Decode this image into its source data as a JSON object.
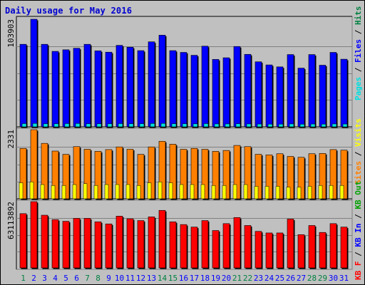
{
  "title": "Daily usage for May 2016",
  "colors": {
    "background": "#c0c0c0",
    "pages": "#00e0e0",
    "files": "#0000ff",
    "hits": "#008040",
    "sites": "#ff8000",
    "visits": "#ffff00",
    "kb_out": "#00a000",
    "kb_in": "#0000ff",
    "kb_f": "#ff0000",
    "title": "#0000d0",
    "weekend_day": "#008040",
    "weekday": "#0000ff"
  },
  "chart_data": [
    {
      "type": "bar",
      "name": "hits-files-pages",
      "ymax_label": "103903",
      "ymax": 103903,
      "legend": [
        "Pages",
        "Files",
        "Hits"
      ],
      "legend_separator": " / ",
      "categories": [
        "1",
        "2",
        "3",
        "4",
        "5",
        "6",
        "7",
        "8",
        "9",
        "10",
        "11",
        "12",
        "13",
        "14",
        "15",
        "16",
        "17",
        "18",
        "19",
        "20",
        "21",
        "22",
        "23",
        "24",
        "25",
        "26",
        "27",
        "28",
        "29",
        "30",
        "31"
      ],
      "series": [
        {
          "name": "Hits",
          "values": [
            79700,
            103900,
            79700,
            72900,
            74400,
            75900,
            79700,
            73400,
            72100,
            78700,
            76900,
            73600,
            82100,
            88500,
            73600,
            71900,
            69100,
            77900,
            65100,
            66700,
            77600,
            70000,
            62800,
            59800,
            57900,
            69800,
            56700,
            69800,
            59500,
            71900,
            65300
          ]
        },
        {
          "name": "Files",
          "values": [
            79700,
            103900,
            79700,
            72900,
            74400,
            75900,
            79700,
            73400,
            72100,
            78700,
            76900,
            73600,
            82100,
            88500,
            73600,
            71900,
            69100,
            77900,
            65100,
            66700,
            77600,
            70000,
            62800,
            59800,
            57900,
            69800,
            56700,
            69800,
            59500,
            71900,
            65300
          ]
        },
        {
          "name": "Pages",
          "values": [
            3100,
            3300,
            3000,
            3000,
            3100,
            3200,
            3000,
            3000,
            3000,
            3100,
            3000,
            3000,
            3200,
            3300,
            3000,
            3000,
            2900,
            3100,
            2800,
            2800,
            3000,
            2800,
            2700,
            2600,
            2600,
            2800,
            2500,
            2700,
            2600,
            2800,
            2700
          ]
        }
      ]
    },
    {
      "type": "bar",
      "name": "visits-sites",
      "ymax_label": "2331",
      "ymax": 2331,
      "legend": [
        "Visits",
        "Sites"
      ],
      "legend_separator": " / ",
      "categories": [
        "1",
        "2",
        "3",
        "4",
        "5",
        "6",
        "7",
        "8",
        "9",
        "10",
        "11",
        "12",
        "13",
        "14",
        "15",
        "16",
        "17",
        "18",
        "19",
        "20",
        "21",
        "22",
        "23",
        "24",
        "25",
        "26",
        "27",
        "28",
        "29",
        "30",
        "31"
      ],
      "series": [
        {
          "name": "Sites",
          "values": [
            1700,
            2331,
            1870,
            1610,
            1500,
            1760,
            1670,
            1600,
            1660,
            1750,
            1670,
            1500,
            1750,
            1940,
            1840,
            1670,
            1700,
            1670,
            1600,
            1630,
            1800,
            1760,
            1500,
            1480,
            1520,
            1430,
            1400,
            1520,
            1530,
            1660,
            1640
          ]
        },
        {
          "name": "Visits",
          "values": [
            180,
            190,
            160,
            150,
            150,
            160,
            170,
            150,
            160,
            160,
            160,
            150,
            180,
            190,
            180,
            160,
            160,
            160,
            150,
            150,
            160,
            160,
            140,
            140,
            140,
            130,
            130,
            140,
            150,
            150,
            150
          ]
        }
      ]
    },
    {
      "type": "bar",
      "name": "kbf-kbin-kbout",
      "ymax_label": "63113892",
      "ymax": 63113892,
      "legend": [
        "KB F",
        "KB In",
        "KB Out"
      ],
      "legend_separator": " / ",
      "categories": [
        "1",
        "2",
        "3",
        "4",
        "5",
        "6",
        "7",
        "8",
        "9",
        "10",
        "11",
        "12",
        "13",
        "14",
        "15",
        "16",
        "17",
        "18",
        "19",
        "20",
        "21",
        "22",
        "23",
        "24",
        "25",
        "26",
        "27",
        "28",
        "29",
        "30",
        "31"
      ],
      "series": [
        {
          "name": "KB F",
          "values": [
            51700000,
            63113892,
            50200000,
            46000000,
            44400000,
            47200000,
            47200000,
            43900000,
            41900000,
            49300000,
            46800000,
            45100000,
            48600000,
            54800000,
            43900000,
            41300000,
            38900000,
            45100000,
            35600000,
            42200000,
            48000000,
            40400000,
            34800000,
            33300000,
            33300000,
            46500000,
            31700000,
            40400000,
            33800000,
            42200000,
            38900000
          ]
        }
      ]
    }
  ],
  "day_labels": [
    {
      "d": "1",
      "weekend": true
    },
    {
      "d": "2",
      "weekend": false
    },
    {
      "d": "3",
      "weekend": false
    },
    {
      "d": "4",
      "weekend": false
    },
    {
      "d": "5",
      "weekend": false
    },
    {
      "d": "6",
      "weekend": false
    },
    {
      "d": "7",
      "weekend": true
    },
    {
      "d": "8",
      "weekend": true
    },
    {
      "d": "9",
      "weekend": false
    },
    {
      "d": "10",
      "weekend": false
    },
    {
      "d": "11",
      "weekend": false
    },
    {
      "d": "12",
      "weekend": false
    },
    {
      "d": "13",
      "weekend": false
    },
    {
      "d": "14",
      "weekend": true
    },
    {
      "d": "15",
      "weekend": true
    },
    {
      "d": "16",
      "weekend": false
    },
    {
      "d": "17",
      "weekend": false
    },
    {
      "d": "18",
      "weekend": false
    },
    {
      "d": "19",
      "weekend": false
    },
    {
      "d": "20",
      "weekend": false
    },
    {
      "d": "21",
      "weekend": true
    },
    {
      "d": "22",
      "weekend": true
    },
    {
      "d": "23",
      "weekend": false
    },
    {
      "d": "24",
      "weekend": false
    },
    {
      "d": "25",
      "weekend": false
    },
    {
      "d": "26",
      "weekend": false
    },
    {
      "d": "27",
      "weekend": false
    },
    {
      "d": "28",
      "weekend": true
    },
    {
      "d": "29",
      "weekend": true
    },
    {
      "d": "30",
      "weekend": false
    },
    {
      "d": "31",
      "weekend": false
    }
  ]
}
